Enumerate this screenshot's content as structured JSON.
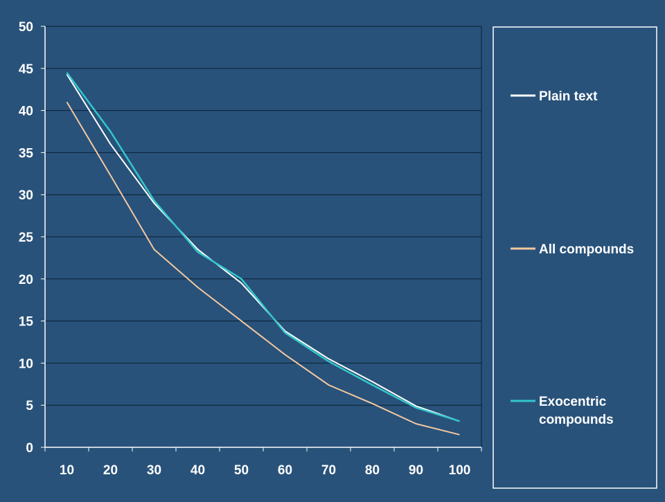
{
  "colors": {
    "background": "#28527a",
    "axis": "#ffffff",
    "grid": "#0a1f33"
  },
  "chart_data": {
    "type": "line",
    "title": "",
    "xlabel": "",
    "ylabel": "",
    "x": [
      10,
      20,
      30,
      40,
      50,
      60,
      70,
      80,
      90,
      100
    ],
    "ylim": [
      0,
      50
    ],
    "yticks": [
      0,
      5,
      10,
      15,
      20,
      25,
      30,
      35,
      40,
      45,
      50
    ],
    "grid": true,
    "legend_position": "right",
    "series": [
      {
        "name": "Plain text",
        "color": "#ffffff",
        "values": [
          44.3,
          36,
          29,
          23.5,
          19.5,
          13.8,
          10.5,
          7.8,
          4.9,
          3.1
        ]
      },
      {
        "name": "All compounds",
        "color": "#f4c8a0",
        "values": [
          41,
          32.3,
          23.5,
          19,
          15,
          11,
          7.4,
          5.2,
          2.8,
          1.5
        ]
      },
      {
        "name": "Exocentric compounds",
        "color": "#33c6cc",
        "values": [
          44.5,
          37.5,
          29.3,
          23.2,
          20,
          13.6,
          10.2,
          7.4,
          4.7,
          3.1
        ]
      }
    ]
  }
}
